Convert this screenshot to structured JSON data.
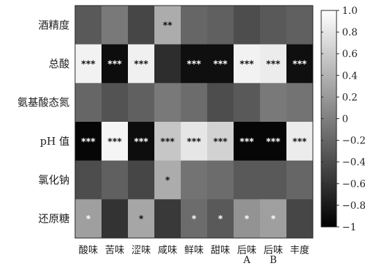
{
  "chart_data": {
    "type": "heatmap",
    "rows": [
      "酒精度",
      "总酸",
      "氨基酸态氮",
      "pH 值",
      "氯化钠",
      "还原糖"
    ],
    "columns": [
      [
        "酸味"
      ],
      [
        "苦味"
      ],
      [
        "涩味"
      ],
      [
        "咸味"
      ],
      [
        "鲜味"
      ],
      [
        "甜味"
      ],
      [
        "后味",
        "A"
      ],
      [
        "后味",
        "B"
      ],
      [
        "丰度"
      ]
    ],
    "values": [
      [
        -0.3,
        -0.05,
        -0.45,
        0.35,
        -0.2,
        -0.25,
        -0.4,
        -0.3,
        -0.25
      ],
      [
        0.9,
        -0.9,
        0.88,
        -0.65,
        -0.88,
        -0.88,
        0.9,
        0.85,
        -0.88
      ],
      [
        -0.2,
        -0.35,
        -0.25,
        -0.05,
        -0.15,
        -0.4,
        -0.3,
        -0.05,
        -0.1
      ],
      [
        -0.95,
        0.92,
        -0.9,
        0.55,
        0.8,
        0.65,
        -0.95,
        -0.95,
        0.85
      ],
      [
        -0.4,
        -0.25,
        -0.45,
        0.35,
        -0.1,
        -0.15,
        -0.3,
        -0.3,
        -0.2
      ],
      [
        0.25,
        -0.6,
        0.3,
        -0.55,
        -0.15,
        -0.3,
        0.15,
        0.25,
        -0.45
      ]
    ],
    "significance": [
      [
        "",
        "",
        "",
        "**",
        "",
        "",
        "",
        "",
        ""
      ],
      [
        "***",
        "***",
        "***",
        "",
        "***",
        "***",
        "***",
        "***",
        "***"
      ],
      [
        "",
        "",
        "",
        "",
        "",
        "",
        "",
        "",
        ""
      ],
      [
        "***",
        "***",
        "***",
        "***",
        "***",
        "***",
        "***",
        "***",
        "***"
      ],
      [
        "",
        "",
        "",
        "*",
        "",
        "",
        "",
        "",
        ""
      ],
      [
        "*",
        "",
        "*",
        "",
        "*",
        "*",
        "*",
        "*",
        ""
      ]
    ],
    "colorbar": {
      "min": -1,
      "max": 1,
      "ticks": [
        "1.0",
        "0.8",
        "0.6",
        "0.4",
        "0.2",
        "0",
        "−0.2",
        "−0.4",
        "−0.6",
        "−0.8",
        "−1"
      ],
      "colormap": "grayscale",
      "low_color": "#000000",
      "high_color": "#ffffff"
    },
    "title": "",
    "xlabel": "",
    "ylabel": ""
  }
}
